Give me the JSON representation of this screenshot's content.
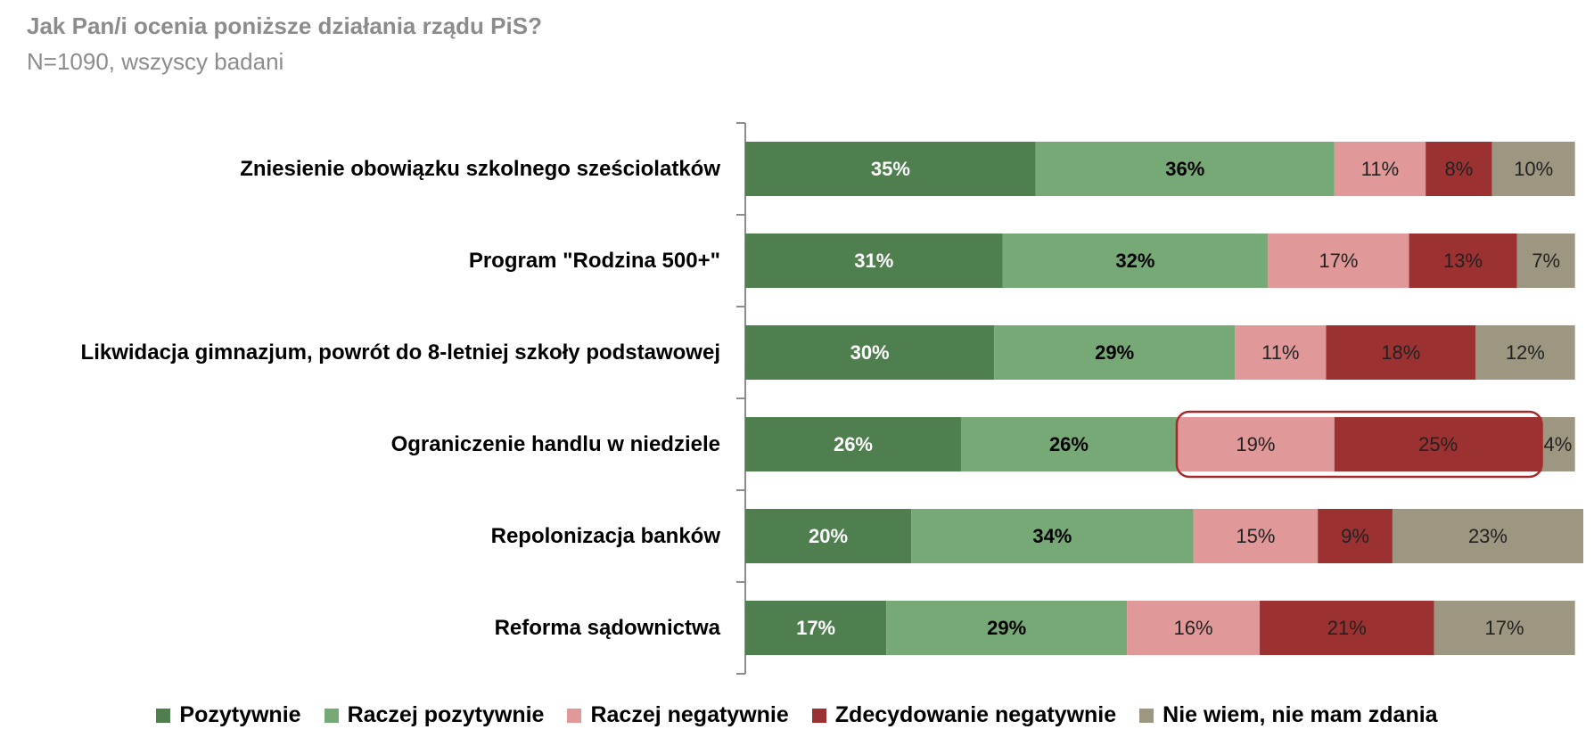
{
  "header": {
    "title": "Jak Pan/i ocenia poniższe działania rządu PiS?",
    "subtitle": "N=1090, wszyscy badani"
  },
  "chart_data": {
    "type": "bar",
    "orientation": "horizontal",
    "stacked": true,
    "categories": [
      "Zniesienie obowiązku szkolnego sześciolatków",
      "Program \"Rodzina 500+\"",
      "Likwidacja gimnazjum, powrót do 8-letniej szkoły podstawowej",
      "Ograniczenie handlu w niedziele",
      "Repolonizacja banków",
      "Reforma sądownictwa"
    ],
    "series": [
      {
        "name": "Pozytywnie",
        "color": "#4f7f4f",
        "label_color": "#ffffff",
        "label_bold": true,
        "values": [
          35,
          31,
          30,
          26,
          20,
          17
        ]
      },
      {
        "name": "Raczej pozytywnie",
        "color": "#77a977",
        "label_color": "#000000",
        "label_bold": true,
        "values": [
          36,
          32,
          29,
          26,
          34,
          29
        ]
      },
      {
        "name": "Raczej negatywnie",
        "color": "#e09898",
        "label_color": "#222222",
        "label_bold": false,
        "values": [
          11,
          17,
          11,
          19,
          15,
          16
        ]
      },
      {
        "name": "Zdecydowanie negatywnie",
        "color": "#9b3131",
        "label_color": "#222222",
        "label_bold": false,
        "values": [
          8,
          13,
          18,
          25,
          9,
          21
        ]
      },
      {
        "name": "Nie wiem, nie mam zdania",
        "color": "#9d9680",
        "label_color": "#222222",
        "label_bold": false,
        "values": [
          10,
          7,
          12,
          4,
          23,
          17
        ]
      }
    ],
    "value_suffix": "%",
    "xlim": [
      0,
      101
    ],
    "legend_position": "bottom",
    "grid": false,
    "highlight": {
      "category_index": 3,
      "series_indices": [
        2,
        3
      ],
      "color": "#a52a2a"
    }
  }
}
